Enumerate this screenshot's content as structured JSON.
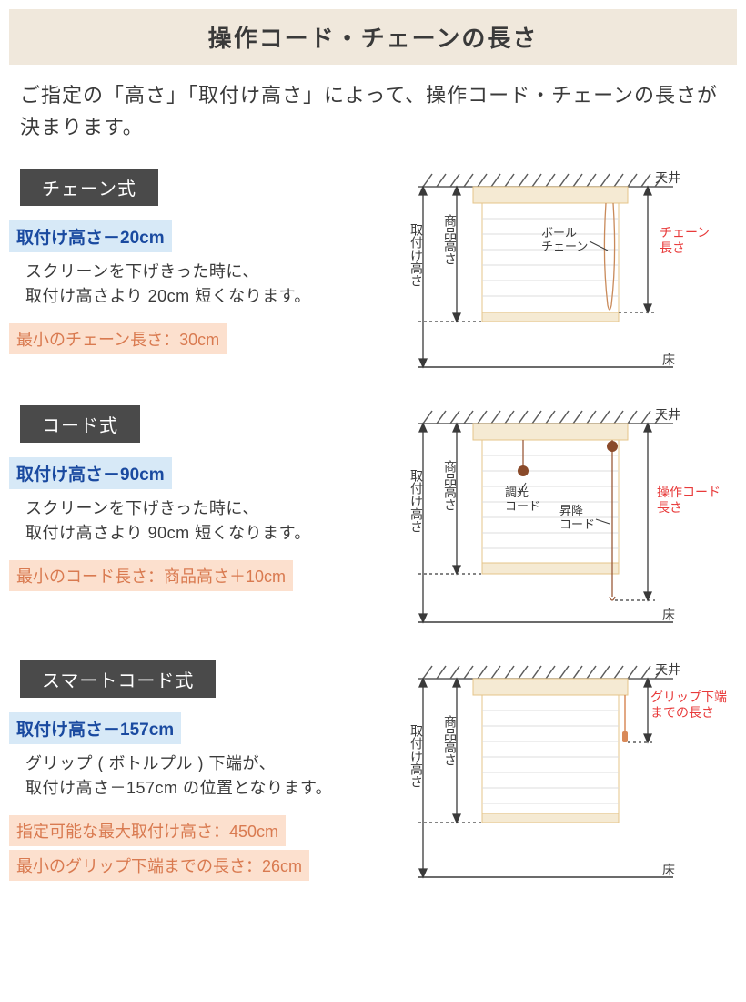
{
  "title": "操作コード・チェーンの長さ",
  "subtitle": "ご指定の「高さ」「取付け高さ」によって、操作コード・チェーンの長さが決まります。",
  "sections": [
    {
      "name": "チェーン式",
      "blue": "取付け高さ－20cm",
      "body": "スクリーンを下げきった時に、\n取付け高さより 20cm 短くなります。",
      "peach": [
        "最小のチェーン長さ：30cm"
      ],
      "diagram": {
        "ceiling_label": "天井",
        "floor_label": "床",
        "left_label1": "取付け高さ",
        "left_label2": "商品高さ",
        "inner_label": "ボール\nチェーン",
        "right_label": "チェーン\n長さ",
        "colors": {
          "ceiling_hatch": "#5a5a5a",
          "screen_border": "#e5c48a",
          "screen_line": "#dcdcdc",
          "arrow": "#3a3a3a",
          "chain": "#c98a5a",
          "red_text": "#e83a3a"
        }
      }
    },
    {
      "name": "コード式",
      "blue": "取付け高さ－90cm",
      "body": "スクリーンを下げきった時に、\n取付け高さより 90cm 短くなります。",
      "peach": [
        "最小のコード長さ：商品高さ＋10cm"
      ],
      "diagram": {
        "ceiling_label": "天井",
        "floor_label": "床",
        "left_label1": "取付け高さ",
        "left_label2": "商品高さ",
        "inner_label1": "調光\nコード",
        "inner_label2": "昇降\nコード",
        "right_label": "操作コード\n長さ",
        "colors": {
          "ceiling_hatch": "#5a5a5a",
          "screen_border": "#e5c48a",
          "screen_line": "#dcdcdc",
          "arrow": "#3a3a3a",
          "cord": "#9a5a3a",
          "knob": "#8a4a2a",
          "red_text": "#e83a3a"
        }
      }
    },
    {
      "name": "スマートコード式",
      "blue": "取付け高さ－157cm",
      "body": "グリップ ( ボトルプル ) 下端が、\n取付け高さ－157cm の位置となります。",
      "peach": [
        "指定可能な最大取付け高さ：450cm",
        "最小のグリップ下端までの長さ：26cm"
      ],
      "diagram": {
        "ceiling_label": "天井",
        "floor_label": "床",
        "left_label1": "取付け高さ",
        "left_label2": "商品高さ",
        "right_label": "グリップ下端\nまでの長さ",
        "colors": {
          "ceiling_hatch": "#5a5a5a",
          "screen_border": "#e5c48a",
          "screen_line": "#dcdcdc",
          "arrow": "#3a3a3a",
          "grip": "#d98a5a",
          "red_text": "#e83a3a"
        }
      }
    }
  ]
}
